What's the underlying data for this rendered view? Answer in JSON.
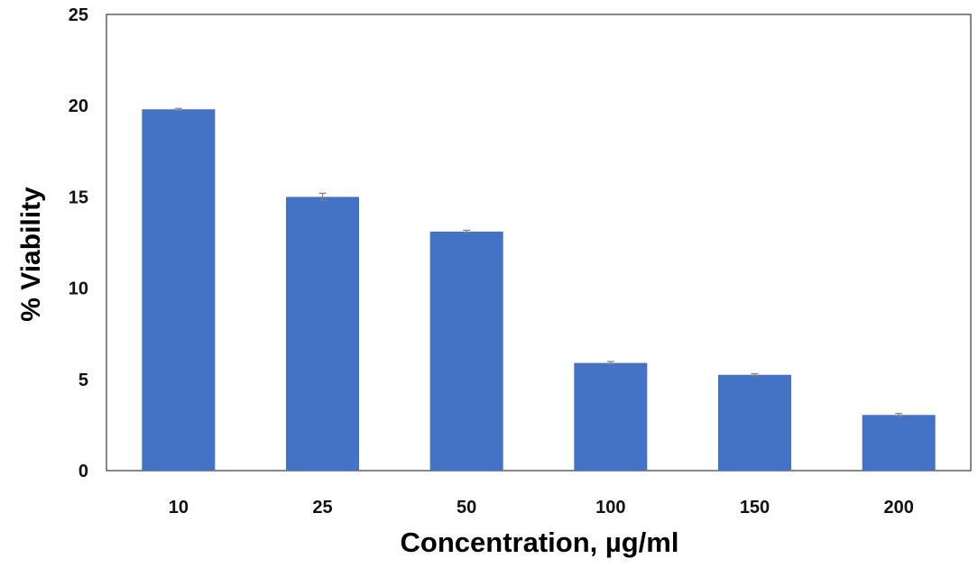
{
  "chart_data": {
    "type": "bar",
    "title": "",
    "xlabel": "Concentration, µg/ml",
    "ylabel": "% Viability",
    "categories": [
      "10",
      "25",
      "50",
      "100",
      "150",
      "200"
    ],
    "series": [
      {
        "values": [
          19.8,
          15.0,
          13.1,
          5.9,
          5.25,
          3.05
        ],
        "errors": [
          0.05,
          0.2,
          0.07,
          0.08,
          0.06,
          0.08
        ]
      }
    ],
    "ylim": [
      0,
      25
    ],
    "yticks": [
      0,
      5,
      10,
      15,
      20,
      25
    ],
    "grid": false,
    "legend": "none",
    "bar_color": "#4472C4",
    "error_bar_color": "#7f7f7f",
    "frame_color": "#3a3a3a"
  }
}
